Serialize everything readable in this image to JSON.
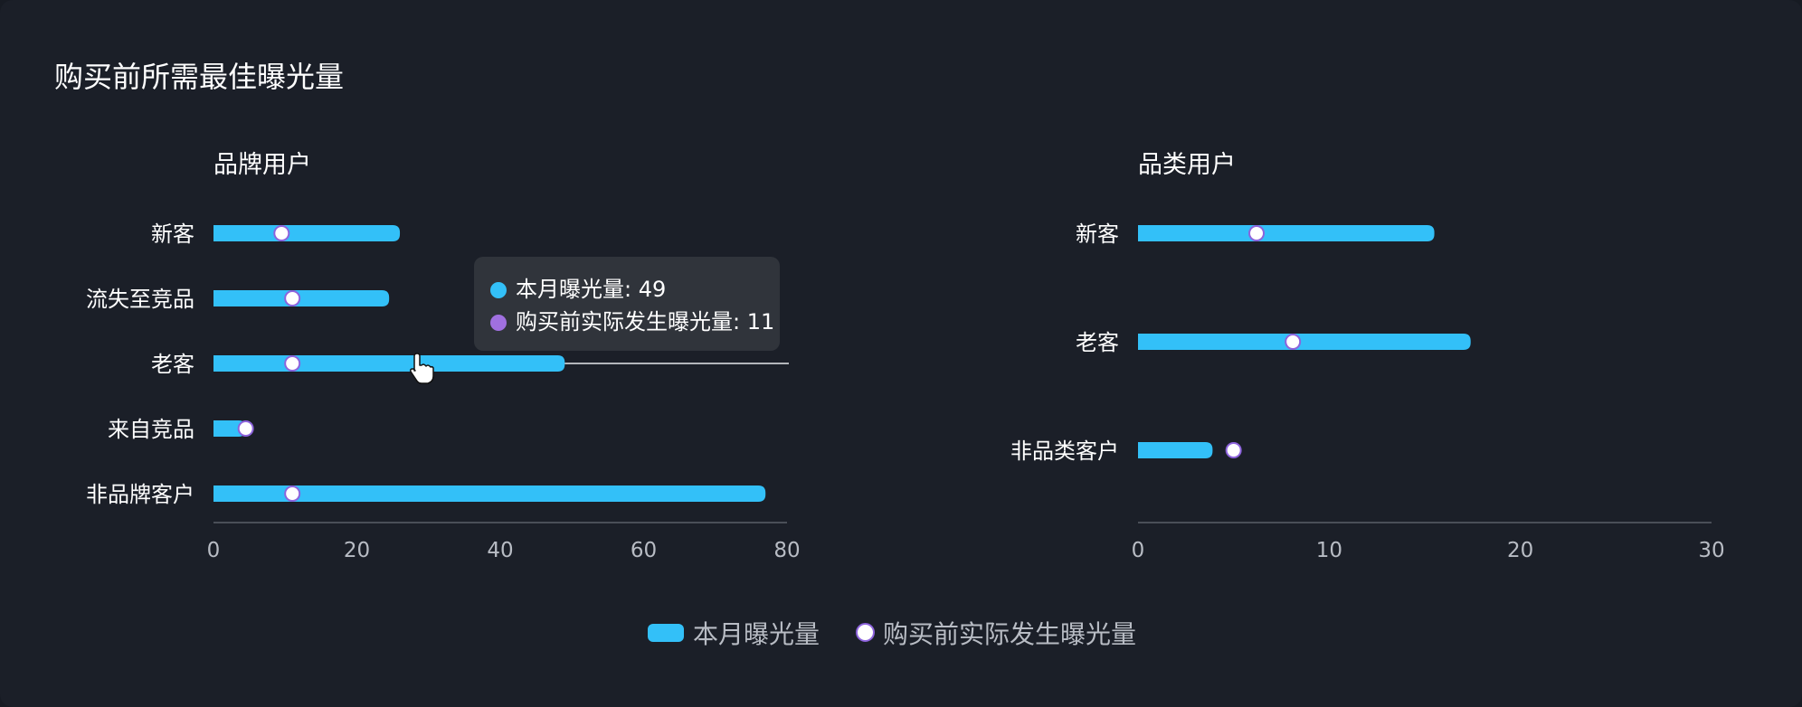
{
  "title": "购买前所需最佳曝光量",
  "colors": {
    "bar": "#33c0f8",
    "marker_fill": "#ffffff",
    "marker_stroke": "#8d63dc",
    "background": "#1b1f28"
  },
  "chart_data": [
    {
      "type": "bar",
      "orientation": "horizontal",
      "title": "品牌用户",
      "categories": [
        "新客",
        "流失至竞品",
        "老客",
        "来自竞品",
        "非品牌客户"
      ],
      "series": [
        {
          "name": "本月曝光量",
          "kind": "bar",
          "values": [
            26,
            24.5,
            49,
            4.5,
            77
          ]
        },
        {
          "name": "购买前实际发生曝光量",
          "kind": "point",
          "values": [
            9.5,
            11,
            11,
            4.5,
            11
          ]
        }
      ],
      "xlim": [
        0,
        80
      ],
      "xticks": [
        "0",
        "20",
        "40",
        "60",
        "80"
      ],
      "highlight": "老客"
    },
    {
      "type": "bar",
      "orientation": "horizontal",
      "title": "品类用户",
      "categories": [
        "新客",
        "老客",
        "非品类客户"
      ],
      "series": [
        {
          "name": "本月曝光量",
          "kind": "bar",
          "values": [
            15.5,
            17.4,
            3.9
          ]
        },
        {
          "name": "购买前实际发生曝光量",
          "kind": "point",
          "values": [
            6.2,
            8.1,
            5.0
          ]
        }
      ],
      "xlim": [
        0,
        30
      ],
      "xticks": [
        "0",
        "10",
        "20",
        "30"
      ]
    }
  ],
  "tooltip": {
    "row1": "本月曝光量: 49",
    "row2": "购买前实际发生曝光量: 11"
  },
  "legend": {
    "bar_label": "本月曝光量",
    "point_label": "购买前实际发生曝光量"
  }
}
